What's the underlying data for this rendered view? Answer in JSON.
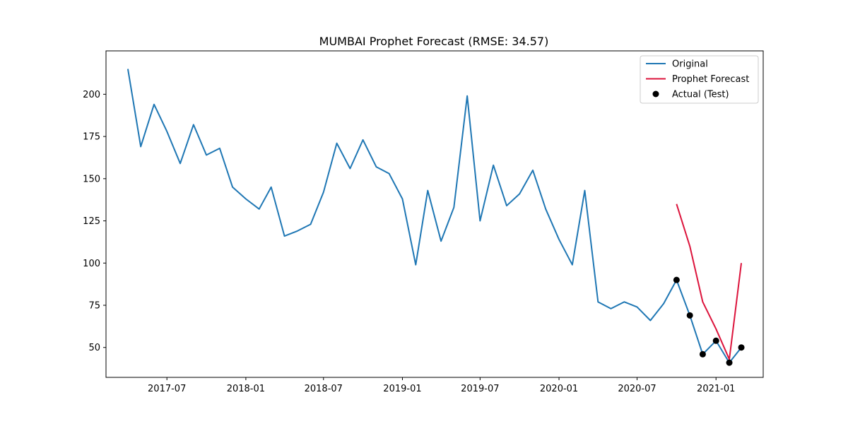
{
  "chart_data": {
    "type": "line",
    "title": "MUMBAI Prophet Forecast (RMSE: 34.57)",
    "xlabel": "",
    "ylabel": "",
    "x_ticks": [
      "2017-07",
      "2018-01",
      "2018-07",
      "2019-01",
      "2019-07",
      "2020-01",
      "2020-07",
      "2021-01"
    ],
    "y_ticks": [
      50,
      75,
      100,
      125,
      150,
      175,
      200
    ],
    "xlim": [
      "2017-02-09",
      "2021-04-21"
    ],
    "ylim": [
      32.3,
      225.7
    ],
    "grid": false,
    "legend_position": "top-right",
    "series": [
      {
        "name": "Original",
        "kind": "line",
        "color": "#1f77b4",
        "x": [
          "2017-04",
          "2017-05",
          "2017-06",
          "2017-07",
          "2017-08",
          "2017-09",
          "2017-10",
          "2017-11",
          "2017-12",
          "2018-01",
          "2018-02",
          "2018-03",
          "2018-04",
          "2018-05",
          "2018-06",
          "2018-07",
          "2018-08",
          "2018-09",
          "2018-10",
          "2018-11",
          "2018-12",
          "2019-01",
          "2019-02",
          "2019-03",
          "2019-04",
          "2019-05",
          "2019-06",
          "2019-07",
          "2019-08",
          "2019-09",
          "2019-10",
          "2019-11",
          "2019-12",
          "2020-01",
          "2020-02",
          "2020-03",
          "2020-04",
          "2020-05",
          "2020-06",
          "2020-07",
          "2020-08",
          "2020-09",
          "2020-10",
          "2020-11",
          "2020-12",
          "2021-01",
          "2021-02",
          "2021-03"
        ],
        "values": [
          215,
          169,
          194,
          178,
          159,
          182,
          164,
          168,
          145,
          138,
          132,
          145,
          116,
          119,
          123,
          142,
          171,
          156,
          173,
          157,
          153,
          138,
          99,
          143,
          113,
          133,
          199,
          125,
          158,
          134,
          141,
          155,
          132,
          114,
          99,
          143,
          77,
          73,
          77,
          74,
          66,
          76,
          90,
          69,
          46,
          54,
          41,
          50
        ]
      },
      {
        "name": "Prophet Forecast",
        "kind": "line",
        "color": "#dc143c",
        "x": [
          "2020-10",
          "2020-11",
          "2020-12",
          "2021-01",
          "2021-02",
          "2021-03"
        ],
        "values": [
          135,
          110,
          77,
          61,
          43,
          100
        ]
      },
      {
        "name": "Actual (Test)",
        "kind": "scatter",
        "color": "#000000",
        "x": [
          "2020-10",
          "2020-11",
          "2020-12",
          "2021-01",
          "2021-02",
          "2021-03"
        ],
        "values": [
          90,
          69,
          46,
          54,
          41,
          50
        ]
      }
    ]
  }
}
